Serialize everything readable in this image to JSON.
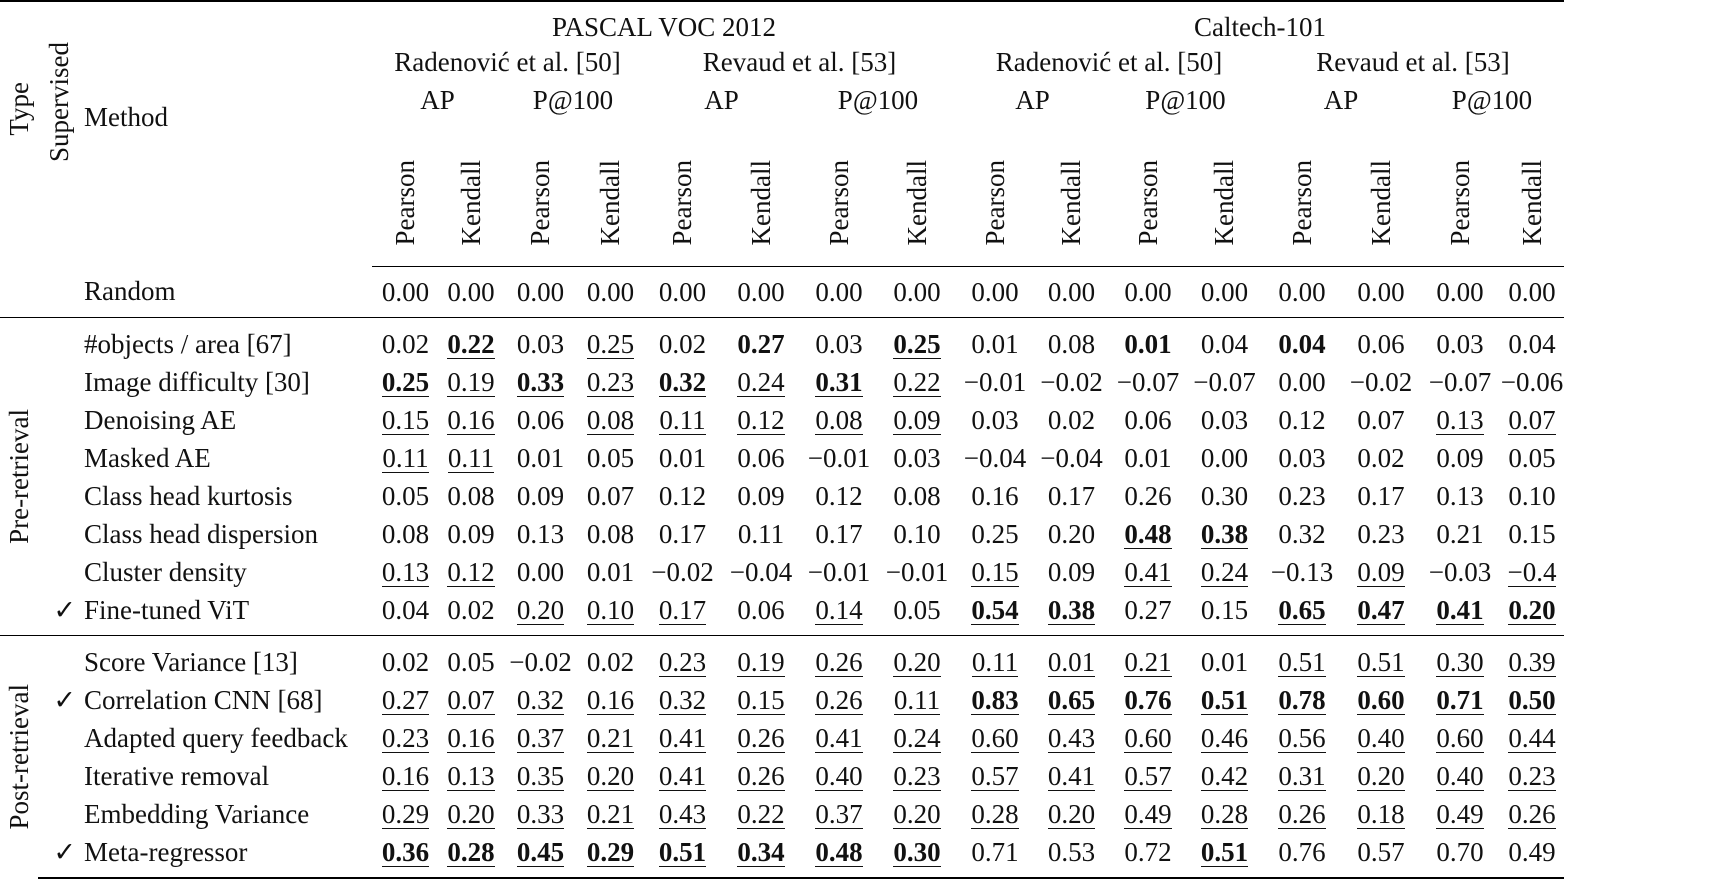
{
  "header": {
    "type": "Type",
    "supervised": "Supervised",
    "method": "Method",
    "datasets": [
      "PASCAL VOC 2012",
      "Caltech-101"
    ],
    "sources": [
      "Radenović et al. [50]",
      "Revaud et al. [53]",
      "Radenović et al. [50]",
      "Revaud et al. [53]"
    ],
    "metrics": [
      "AP",
      "P@100",
      "AP",
      "P@100",
      "AP",
      "P@100",
      "AP",
      "P@100"
    ],
    "corr": [
      "Pearson",
      "Kendall"
    ]
  },
  "groups": [
    "Pre-retrieval",
    "Post-retrieval"
  ],
  "check_mark": "✓",
  "rows": [
    {
      "method": "Random",
      "sup": "",
      "vals": [
        "0.00",
        "0.00",
        "0.00",
        "0.00",
        "0.00",
        "0.00",
        "0.00",
        "0.00",
        "0.00",
        "0.00",
        "0.00",
        "0.00",
        "0.00",
        "0.00",
        "0.00",
        "0.00"
      ],
      "fmt": "0000000000000000"
    },
    {
      "method": "#objects / area [67]",
      "sup": "",
      "vals": [
        "0.02",
        "0.22",
        "0.03",
        "0.25",
        "0.02",
        "0.27",
        "0.03",
        "0.25",
        "0.01",
        "0.08",
        "0.01",
        "0.04",
        "0.04",
        "0.06",
        "0.03",
        "0.04"
      ],
      "fmt": "0301020300202000"
    },
    {
      "method": "Image difficulty [30]",
      "sup": "",
      "vals": [
        "0.25",
        "0.19",
        "0.33",
        "0.23",
        "0.32",
        "0.24",
        "0.31",
        "0.22",
        "−0.01",
        "−0.02",
        "−0.07",
        "−0.07",
        "0.00",
        "−0.02",
        "−0.07",
        "−0.06"
      ],
      "fmt": "3131313100000000"
    },
    {
      "method": "Denoising AE",
      "sup": "",
      "vals": [
        "0.15",
        "0.16",
        "0.06",
        "0.08",
        "0.11",
        "0.12",
        "0.08",
        "0.09",
        "0.03",
        "0.02",
        "0.06",
        "0.03",
        "0.12",
        "0.07",
        "0.13",
        "0.07"
      ],
      "fmt": "1101111100000011"
    },
    {
      "method": "Masked AE",
      "sup": "",
      "vals": [
        "0.11",
        "0.11",
        "0.01",
        "0.05",
        "0.01",
        "0.06",
        "−0.01",
        "0.03",
        "−0.04",
        "−0.04",
        "0.01",
        "0.00",
        "0.03",
        "0.02",
        "0.09",
        "0.05"
      ],
      "fmt": "1100000000000000"
    },
    {
      "method": "Class head kurtosis",
      "sup": "",
      "vals": [
        "0.05",
        "0.08",
        "0.09",
        "0.07",
        "0.12",
        "0.09",
        "0.12",
        "0.08",
        "0.16",
        "0.17",
        "0.26",
        "0.30",
        "0.23",
        "0.17",
        "0.13",
        "0.10"
      ],
      "fmt": "0000000000000000"
    },
    {
      "method": "Class head dispersion",
      "sup": "",
      "vals": [
        "0.08",
        "0.09",
        "0.13",
        "0.08",
        "0.17",
        "0.11",
        "0.17",
        "0.10",
        "0.25",
        "0.20",
        "0.48",
        "0.38",
        "0.32",
        "0.23",
        "0.21",
        "0.15"
      ],
      "fmt": "0000000000330000"
    },
    {
      "method": "Cluster density",
      "sup": "",
      "vals": [
        "0.13",
        "0.12",
        "0.00",
        "0.01",
        "−0.02",
        "−0.04",
        "−0.01",
        "−0.01",
        "0.15",
        "0.09",
        "0.41",
        "0.24",
        "−0.13",
        "0.09",
        "−0.03",
        "−0.4"
      ],
      "fmt": "1100000010110101"
    },
    {
      "method": "Fine-tuned ViT",
      "sup": "✓",
      "vals": [
        "0.04",
        "0.02",
        "0.20",
        "0.10",
        "0.17",
        "0.06",
        "0.14",
        "0.05",
        "0.54",
        "0.38",
        "0.27",
        "0.15",
        "0.65",
        "0.47",
        "0.41",
        "0.20"
      ],
      "fmt": "0011101033003333"
    },
    {
      "method": "Score Variance [13]",
      "sup": "",
      "vals": [
        "0.02",
        "0.05",
        "−0.02",
        "0.02",
        "0.23",
        "0.19",
        "0.26",
        "0.20",
        "0.11",
        "0.01",
        "0.21",
        "0.01",
        "0.51",
        "0.51",
        "0.30",
        "0.39"
      ],
      "fmt": "0000111111101111"
    },
    {
      "method": "Correlation CNN [68]",
      "sup": "✓",
      "vals": [
        "0.27",
        "0.07",
        "0.32",
        "0.16",
        "0.32",
        "0.15",
        "0.26",
        "0.11",
        "0.83",
        "0.65",
        "0.76",
        "0.51",
        "0.78",
        "0.60",
        "0.71",
        "0.50"
      ],
      "fmt": "1111111133333333"
    },
    {
      "method": "Adapted query feedback",
      "sup": "",
      "vals": [
        "0.23",
        "0.16",
        "0.37",
        "0.21",
        "0.41",
        "0.26",
        "0.41",
        "0.24",
        "0.60",
        "0.43",
        "0.60",
        "0.46",
        "0.56",
        "0.40",
        "0.60",
        "0.44"
      ],
      "fmt": "1111111111111111"
    },
    {
      "method": "Iterative removal",
      "sup": "",
      "vals": [
        "0.16",
        "0.13",
        "0.35",
        "0.20",
        "0.41",
        "0.26",
        "0.40",
        "0.23",
        "0.57",
        "0.41",
        "0.57",
        "0.42",
        "0.31",
        "0.20",
        "0.40",
        "0.23"
      ],
      "fmt": "1111111111111111"
    },
    {
      "method": "Embedding Variance",
      "sup": "",
      "vals": [
        "0.29",
        "0.20",
        "0.33",
        "0.21",
        "0.43",
        "0.22",
        "0.37",
        "0.20",
        "0.28",
        "0.20",
        "0.49",
        "0.28",
        "0.26",
        "0.18",
        "0.49",
        "0.26"
      ],
      "fmt": "1111111111111111"
    },
    {
      "method": "Meta-regressor",
      "sup": "✓",
      "vals": [
        "0.36",
        "0.28",
        "0.45",
        "0.29",
        "0.51",
        "0.34",
        "0.48",
        "0.30",
        "0.71",
        "0.53",
        "0.72",
        "0.51",
        "0.76",
        "0.57",
        "0.70",
        "0.49"
      ],
      "fmt": "3333333300030000"
    }
  ]
}
